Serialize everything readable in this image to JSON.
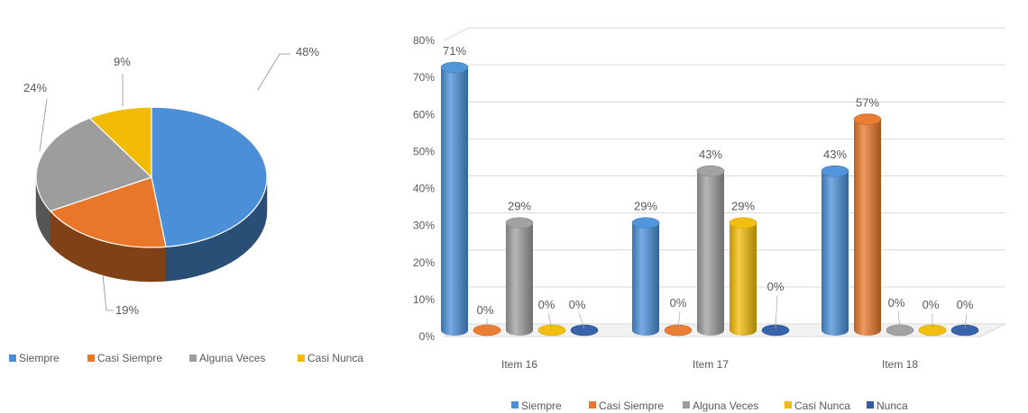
{
  "colors": {
    "Siempre": "#4a8fd8",
    "Casi Siempre": "#e8772a",
    "Alguna Veces": "#9d9d9d",
    "Casi Nunca": "#f2bb05",
    "Nunca": "#2e5ca7"
  },
  "chart_data": [
    {
      "type": "pie",
      "title": "",
      "slices": [
        {
          "label": "Siempre",
          "value": 48,
          "display": "48%"
        },
        {
          "label": "Casi Siempre",
          "value": 19,
          "display": "19%"
        },
        {
          "label": "Alguna Veces",
          "value": 24,
          "display": "24%"
        },
        {
          "label": "Casi Nunca",
          "value": 9,
          "display": "9%"
        }
      ],
      "legend": [
        "Siempre",
        "Casi Siempre",
        "Alguna Veces",
        "Casi Nunca"
      ],
      "legend_position": "bottom",
      "style": "3d"
    },
    {
      "type": "bar",
      "title": "",
      "categories": [
        "Item 16",
        "Item 17",
        "Item 18"
      ],
      "series": [
        {
          "name": "Siempre",
          "values": [
            71,
            29,
            43
          ]
        },
        {
          "name": "Casi Siempre",
          "values": [
            0,
            0,
            57
          ]
        },
        {
          "name": "Alguna Veces",
          "values": [
            29,
            43,
            0
          ]
        },
        {
          "name": "Casi Nunca",
          "values": [
            0,
            29,
            0
          ]
        },
        {
          "name": "Nunca",
          "values": [
            0,
            0,
            0
          ]
        }
      ],
      "value_labels": [
        [
          "71%",
          "0%",
          "29%",
          "0%",
          "0%"
        ],
        [
          "29%",
          "0%",
          "43%",
          "29%",
          "0%"
        ],
        [
          "43%",
          "57%",
          "0%",
          "0%",
          "0%"
        ]
      ],
      "y_ticks": [
        "0%",
        "10%",
        "20%",
        "30%",
        "40%",
        "50%",
        "60%",
        "70%",
        "80%"
      ],
      "ylim": [
        0,
        80
      ],
      "grid": true,
      "legend_position": "bottom",
      "style": "3d-cylinder"
    }
  ]
}
